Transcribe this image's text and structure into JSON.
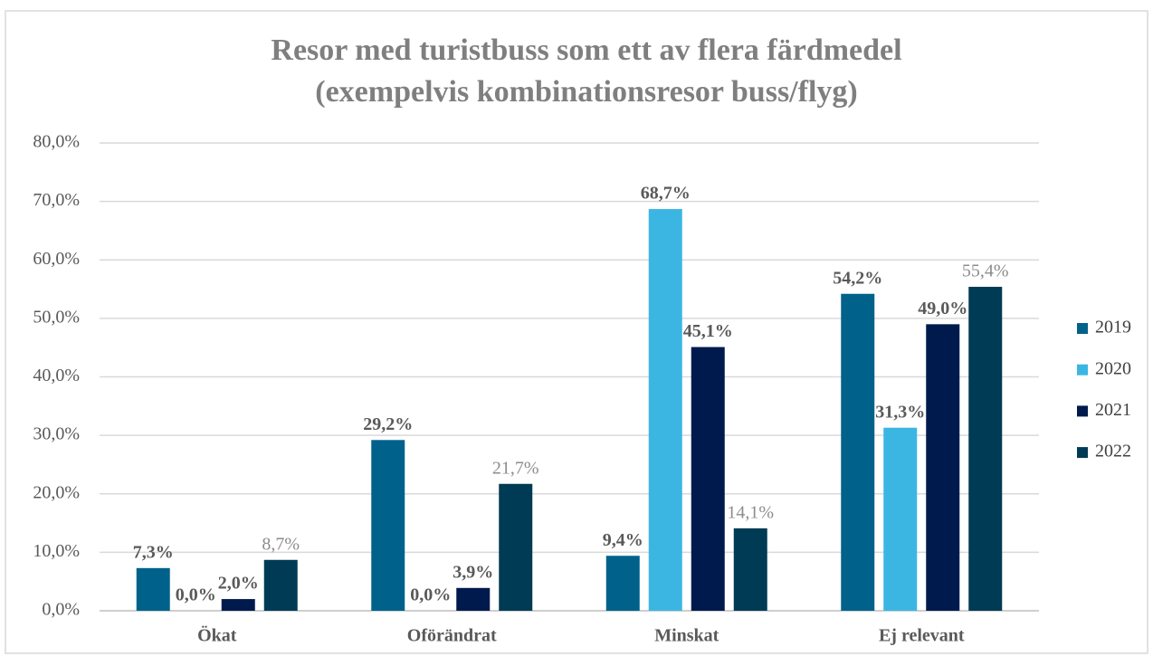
{
  "chart_data": {
    "type": "bar",
    "title": [
      "Resor med turistbuss som ett av flera färdmedel",
      "(exempelvis kombinationsresor buss/flyg)"
    ],
    "categories": [
      "Ökat",
      "Oförändrat",
      "Minskat",
      "Ej relevant"
    ],
    "series": [
      {
        "name": "2019",
        "color": "#00628a",
        "label_color": "#595959",
        "values": [
          7.3,
          29.2,
          9.4,
          54.2
        ],
        "value_labels": [
          "7,3%",
          "29,2%",
          "9,4%",
          "54,2%"
        ]
      },
      {
        "name": "2020",
        "color": "#3bb6e3",
        "label_color": "#595959",
        "values": [
          0.0,
          0.0,
          68.7,
          31.3
        ],
        "value_labels": [
          "0,0%",
          "0,0%",
          "68,7%",
          "31,3%"
        ]
      },
      {
        "name": "2021",
        "color": "#001a4d",
        "label_color": "#595959",
        "values": [
          2.0,
          3.9,
          45.1,
          49.0
        ],
        "value_labels": [
          "2,0%",
          "3,9%",
          "45,1%",
          "49,0%"
        ]
      },
      {
        "name": "2022",
        "color": "#003b55",
        "label_color": "#8c8c8c",
        "values": [
          8.7,
          21.7,
          14.1,
          55.4
        ],
        "value_labels": [
          "8,7%",
          "21,7%",
          "14,1%",
          "55,4%"
        ]
      }
    ],
    "ylim": [
      0,
      80
    ],
    "yticks": [
      {
        "value": 0,
        "label": "0,0%"
      },
      {
        "value": 10,
        "label": "10,0%"
      },
      {
        "value": 20,
        "label": "20,0%"
      },
      {
        "value": 30,
        "label": "30,0%"
      },
      {
        "value": 40,
        "label": "40,0%"
      },
      {
        "value": 50,
        "label": "50,0%"
      },
      {
        "value": 60,
        "label": "60,0%"
      },
      {
        "value": 70,
        "label": "70,0%"
      },
      {
        "value": 80,
        "label": "80,0%"
      }
    ],
    "grid": true,
    "legend": "right"
  }
}
